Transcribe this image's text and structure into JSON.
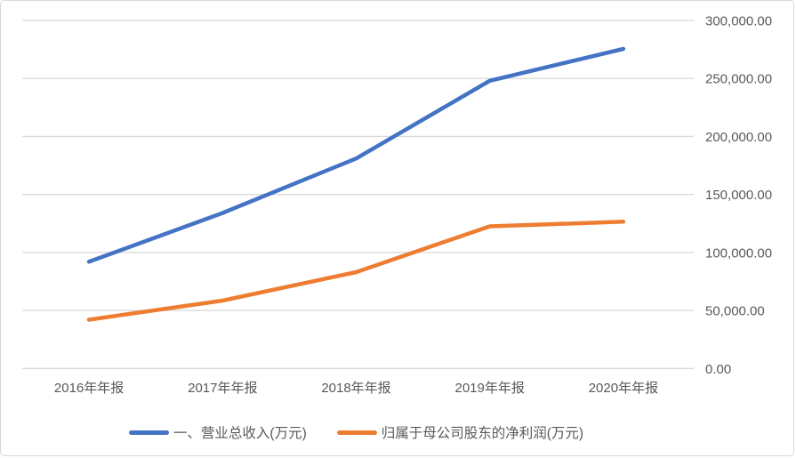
{
  "chart_data": {
    "type": "line",
    "title": "",
    "categories": [
      "2016年年报",
      "2017年年报",
      "2018年年报",
      "2019年年报",
      "2020年年报"
    ],
    "series": [
      {
        "name": "一、营业总收入(万元)",
        "color": "#4472C4",
        "values": [
          92000,
          134000,
          181000,
          248000,
          275500
        ]
      },
      {
        "name": "归属于母公司股东的净利润(万元)",
        "color": "#ED7D31",
        "values": [
          42000,
          58500,
          83000,
          122500,
          126500
        ]
      }
    ],
    "xlabel": "",
    "ylabel": "",
    "ylim": [
      0,
      300000
    ],
    "y_tick_step": 50000,
    "y_tick_labels": [
      "0.00",
      "50,000.00",
      "100,000.00",
      "150,000.00",
      "200,000.00",
      "250,000.00",
      "300,000.00"
    ],
    "y_axis_side": "right",
    "grid": "horizontal",
    "legend_position": "bottom",
    "colors": {
      "background": "#FFFFFF",
      "gridline": "#D9D9D9",
      "axis_text": "#595959",
      "frame_border": "#D8D8D8"
    }
  }
}
